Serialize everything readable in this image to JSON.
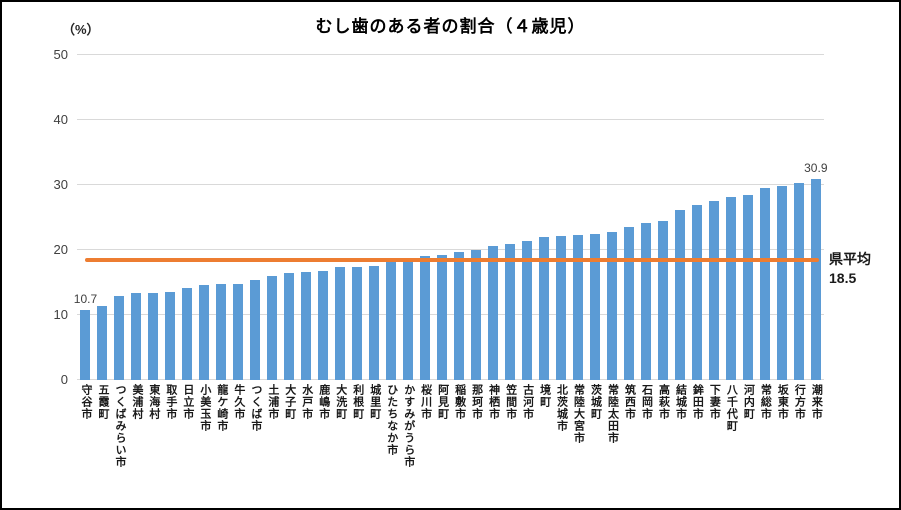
{
  "title": "むし歯のある者の割合（４歳児）",
  "y_axis": {
    "unit_label": "（%）",
    "ticks": [
      0,
      10,
      20,
      30,
      40,
      50
    ]
  },
  "colors": {
    "bar": "#5B9BD5",
    "reference_line": "#ED7D31",
    "gridline": "#d9d9d9"
  },
  "chart_data": {
    "type": "bar",
    "title": "むし歯のある者の割合（４歳児）",
    "ylabel": "（%）",
    "ylim": [
      0,
      50
    ],
    "grid": true,
    "bar_color": "#5B9BD5",
    "categories": [
      "守谷市",
      "五霞町",
      "つくばみらい市",
      "美浦村",
      "東海村",
      "取手市",
      "日立市",
      "小美玉市",
      "龍ケ崎市",
      "牛久市",
      "つくば市",
      "土浦市",
      "大子町",
      "水戸市",
      "鹿嶋市",
      "大洗町",
      "利根町",
      "城里町",
      "ひたちなか市",
      "かすみがうら市",
      "桜川市",
      "阿見町",
      "稲敷市",
      "那珂市",
      "神栖市",
      "笠間市",
      "古河市",
      "境町",
      "北茨城市",
      "常陸大宮市",
      "茨城町",
      "常陸太田市",
      "筑西市",
      "石岡市",
      "高萩市",
      "結城市",
      "鉾田市",
      "下妻市",
      "八千代町",
      "河内町",
      "常総市",
      "坂東市",
      "行方市",
      "潮来市"
    ],
    "values": [
      10.7,
      11.4,
      13.0,
      13.4,
      13.4,
      13.5,
      14.1,
      14.6,
      14.7,
      14.8,
      15.4,
      16.0,
      16.4,
      16.6,
      16.7,
      17.4,
      17.4,
      17.6,
      18.3,
      18.5,
      19.1,
      19.2,
      19.7,
      20.0,
      20.6,
      21.0,
      21.4,
      22.0,
      22.1,
      22.3,
      22.5,
      22.8,
      23.6,
      24.2,
      24.5,
      26.1,
      27.0,
      27.5,
      28.2,
      28.5,
      29.5,
      29.8,
      30.3,
      30.9
    ],
    "point_labels": [
      {
        "index": 0,
        "text": "10.7"
      },
      {
        "index": 43,
        "text": "30.9"
      }
    ],
    "reference_line": {
      "value": 18.5,
      "color": "#ED7D31",
      "label_line1": "県平均",
      "label_line2": "18.5"
    }
  }
}
